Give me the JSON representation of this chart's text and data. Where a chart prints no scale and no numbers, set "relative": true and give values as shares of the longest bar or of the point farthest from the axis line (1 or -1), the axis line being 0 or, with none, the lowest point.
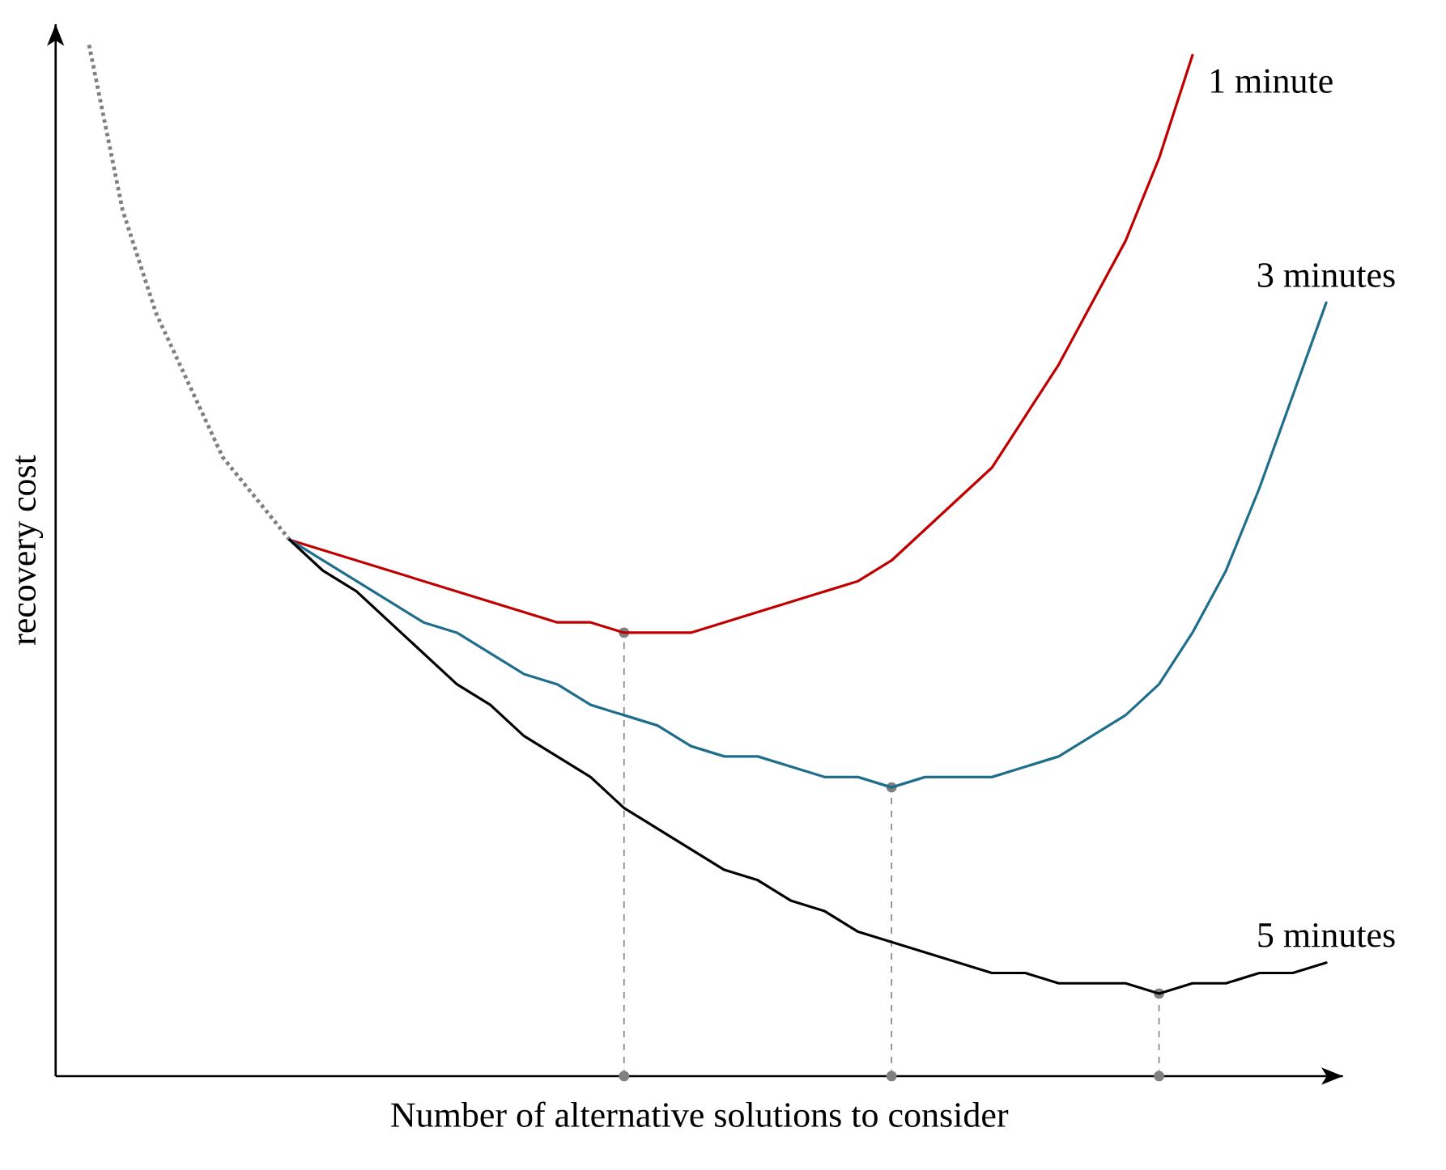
{
  "chart_data": {
    "type": "line",
    "relative": true,
    "xlabel": "Number of alternative solutions to consider",
    "ylabel": "recovery cost",
    "categories": [
      null,
      null,
      null,
      null,
      null,
      null,
      null,
      null,
      null,
      null,
      null,
      null,
      null,
      null,
      null,
      null,
      null,
      null,
      null,
      null,
      null,
      null,
      null,
      null,
      null,
      null,
      null,
      null,
      null,
      null,
      null,
      null,
      null,
      null,
      null,
      null,
      null,
      null
    ],
    "series": [
      {
        "color": "#808080",
        "line_style": "dotted",
        "values": [
          1.0,
          0.84,
          0.74,
          0.67,
          0.6,
          0.56,
          0.52,
          null,
          null,
          null,
          null,
          null,
          null,
          null,
          null,
          null,
          null,
          null,
          null,
          null,
          null,
          null,
          null,
          null,
          null,
          null,
          null,
          null,
          null,
          null,
          null,
          null,
          null,
          null,
          null,
          null,
          null,
          null
        ]
      },
      {
        "name": "1 minute",
        "color": "#c00000",
        "values": [
          null,
          null,
          null,
          null,
          null,
          null,
          0.52,
          0.51,
          0.5,
          0.49,
          0.48,
          0.47,
          0.46,
          0.45,
          0.44,
          0.44,
          0.43,
          0.43,
          0.43,
          0.44,
          0.45,
          0.46,
          0.47,
          0.48,
          0.5,
          0.53,
          0.56,
          0.59,
          0.64,
          0.69,
          0.75,
          0.81,
          0.89,
          0.99,
          null,
          null,
          null,
          null
        ]
      },
      {
        "name": "3 minutes",
        "color": "#1f6e8c",
        "values": [
          null,
          null,
          null,
          null,
          null,
          null,
          0.52,
          0.5,
          0.48,
          0.46,
          0.44,
          0.43,
          0.41,
          0.39,
          0.38,
          0.36,
          0.35,
          0.34,
          0.32,
          0.31,
          0.31,
          0.3,
          0.29,
          0.29,
          0.28,
          0.29,
          0.29,
          0.29,
          0.3,
          0.31,
          0.33,
          0.35,
          0.38,
          0.43,
          0.49,
          0.57,
          0.66,
          0.75
        ]
      },
      {
        "name": "5 minutes",
        "color": "#000000",
        "values": [
          null,
          null,
          null,
          null,
          null,
          null,
          0.52,
          0.49,
          0.47,
          0.44,
          0.41,
          0.38,
          0.36,
          0.33,
          0.31,
          0.29,
          0.26,
          0.24,
          0.22,
          0.2,
          0.19,
          0.17,
          0.16,
          0.14,
          0.13,
          0.12,
          0.11,
          0.1,
          0.1,
          0.09,
          0.09,
          0.09,
          0.08,
          0.09,
          0.09,
          0.1,
          0.1,
          0.11
        ]
      }
    ]
  }
}
